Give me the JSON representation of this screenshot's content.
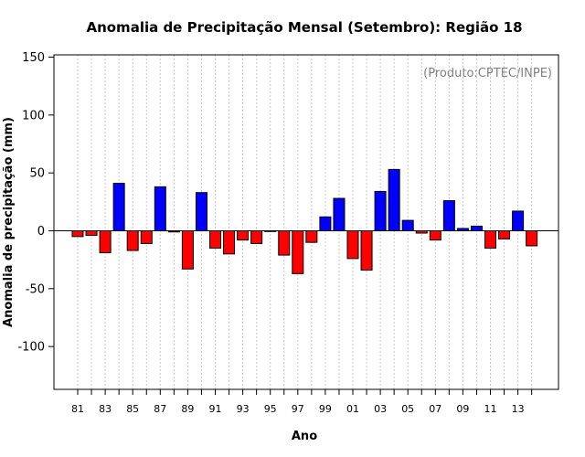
{
  "chart_data": {
    "type": "bar",
    "title": "Anomalia de Precipitação Mensal (Setembro): Região 18",
    "xlabel": "Ano",
    "ylabel": "Anomalia de precipitação (mm)",
    "annotation": "(Produto:CPTEC/INPE)",
    "ylim": [
      -137,
      152
    ],
    "yticks": [
      -100,
      -50,
      0,
      50,
      100,
      150
    ],
    "grid": "vertical dotted lines at each year",
    "x": [
      "1981",
      "1982",
      "1983",
      "1984",
      "1985",
      "1986",
      "1987",
      "1988",
      "1989",
      "1990",
      "1991",
      "1992",
      "1993",
      "1994",
      "1995",
      "1996",
      "1997",
      "1998",
      "1999",
      "2000",
      "2001",
      "2002",
      "2003",
      "2004",
      "2005",
      "2006",
      "2007",
      "2008",
      "2009",
      "2010",
      "2011",
      "2012",
      "2013",
      "2014"
    ],
    "xtick_labels": [
      "81",
      "83",
      "85",
      "87",
      "89",
      "91",
      "93",
      "95",
      "97",
      "99",
      "01",
      "03",
      "05",
      "07",
      "09",
      "11",
      "13"
    ],
    "xtick_label_years": [
      "1981",
      "1983",
      "1985",
      "1987",
      "1989",
      "1991",
      "1993",
      "1995",
      "1997",
      "1999",
      "2001",
      "2003",
      "2005",
      "2007",
      "2009",
      "2011",
      "2013"
    ],
    "values": [
      -5,
      -4,
      -19,
      41,
      -17,
      -11,
      38,
      -1,
      -33,
      33,
      -15,
      -20,
      -8,
      -11,
      0,
      -21,
      -37,
      -10,
      12,
      28,
      -24,
      -34,
      34,
      53,
      9,
      -2,
      -8,
      26,
      2,
      4,
      -15,
      -7,
      17,
      -13
    ],
    "colors": {
      "positive": "#0000ff",
      "negative": "#ff0000",
      "bar_stroke": "#000000",
      "grid": "#c8c8c8"
    }
  }
}
